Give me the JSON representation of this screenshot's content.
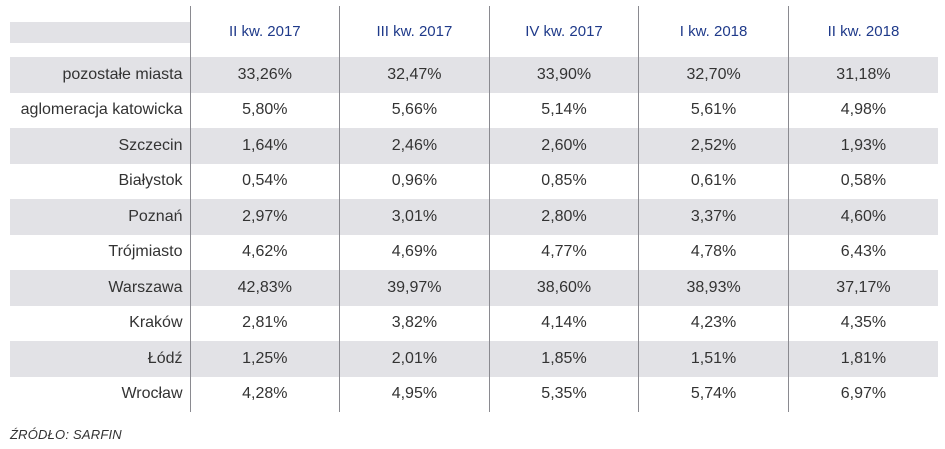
{
  "table": {
    "headers": [
      "II kw. 2017",
      "III kw. 2017",
      "IV kw. 2017",
      "I kw.  2018",
      "II kw. 2018"
    ],
    "rows": [
      {
        "label": "pozostałe miasta",
        "values": [
          "33,26%",
          "32,47%",
          "33,90%",
          "32,70%",
          "31,18%"
        ]
      },
      {
        "label": "aglomeracja katowicka",
        "values": [
          "5,80%",
          "5,66%",
          "5,14%",
          "5,61%",
          "4,98%"
        ]
      },
      {
        "label": "Szczecin",
        "values": [
          "1,64%",
          "2,46%",
          "2,60%",
          "2,52%",
          "1,93%"
        ]
      },
      {
        "label": "Białystok",
        "values": [
          "0,54%",
          "0,96%",
          "0,85%",
          "0,61%",
          "0,58%"
        ]
      },
      {
        "label": "Poznań",
        "values": [
          "2,97%",
          "3,01%",
          "2,80%",
          "3,37%",
          "4,60%"
        ]
      },
      {
        "label": "Trójmiasto",
        "values": [
          "4,62%",
          "4,69%",
          "4,77%",
          "4,78%",
          "6,43%"
        ]
      },
      {
        "label": "Warszawa",
        "values": [
          "42,83%",
          "39,97%",
          "38,60%",
          "38,93%",
          "37,17%"
        ]
      },
      {
        "label": "Kraków",
        "values": [
          "2,81%",
          "3,82%",
          "4,14%",
          "4,23%",
          "4,35%"
        ]
      },
      {
        "label": "Łódź",
        "values": [
          "1,25%",
          "2,01%",
          "1,85%",
          "1,51%",
          "1,81%"
        ]
      },
      {
        "label": "Wrocław",
        "values": [
          "4,28%",
          "4,95%",
          "5,35%",
          "5,74%",
          "6,97%"
        ]
      }
    ]
  },
  "source": "ŹRÓDŁO: SARFIN",
  "colors": {
    "header_text": "#1f3a8a",
    "row_shade": "#e2e2e6",
    "divider": "#8a8a90"
  }
}
